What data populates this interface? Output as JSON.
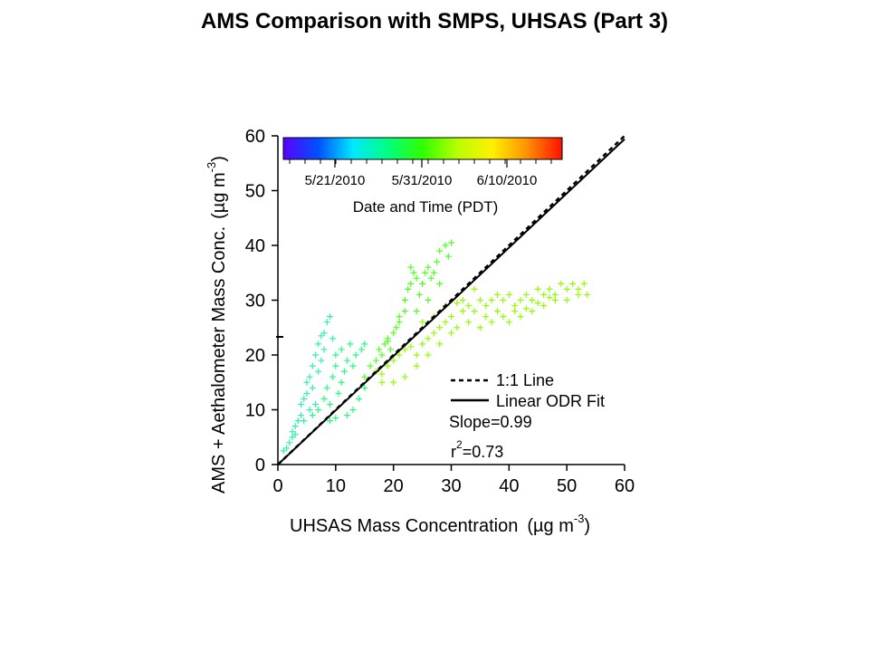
{
  "slide": {
    "title": "AMS Comparison with SMPS, UHSAS (Part 3)"
  },
  "chart_data": {
    "type": "scatter",
    "xlabel": "UHSAS Mass Concentration",
    "xlabel_units": "(µg m",
    "xlabel_units_exp": "-3",
    "xlabel_units_close": ")",
    "ylabel": "AMS + Aethalometer Mass Conc.",
    "ylabel_units": "(µg m",
    "ylabel_units_exp": "-3",
    "ylabel_units_close": ")",
    "xlim": [
      0,
      60
    ],
    "ylim": [
      0,
      60
    ],
    "xticks": [
      0,
      10,
      20,
      30,
      40,
      50,
      60
    ],
    "yticks": [
      0,
      10,
      20,
      30,
      40,
      50,
      60
    ],
    "grid": false,
    "colorbar": {
      "label": "Date and Time (PDT)",
      "ticks": [
        "5/21/2010",
        "5/31/2010",
        "6/10/2010"
      ],
      "colormap": [
        "#5a00ff",
        "#0050ff",
        "#00e8ff",
        "#00ff80",
        "#30ff00",
        "#b8ff00",
        "#fff000",
        "#ff9000",
        "#ff1000"
      ]
    },
    "legend": {
      "position": "bottom-right",
      "entries": [
        {
          "label": "1:1 Line",
          "style": "dashed"
        },
        {
          "label": "Linear ODR Fit",
          "style": "solid"
        }
      ]
    },
    "annotations": {
      "slope": "Slope=0.99",
      "r2_prefix": "r",
      "r2_exp": "2",
      "r2_value": "=0.73"
    },
    "reference_line": {
      "slope": 1,
      "intercept": 0
    },
    "fit_line": {
      "slope": 0.99,
      "intercept": 0
    },
    "series": [
      {
        "color": "#30f0b0",
        "points": [
          [
            1,
            2.5
          ],
          [
            1.5,
            3
          ],
          [
            2,
            4
          ],
          [
            2.5,
            5
          ],
          [
            2.5,
            6
          ],
          [
            3,
            7
          ],
          [
            3,
            5.5
          ],
          [
            3.5,
            8
          ],
          [
            4,
            9
          ],
          [
            4,
            11
          ],
          [
            4.5,
            12
          ],
          [
            5,
            13
          ],
          [
            5,
            15
          ],
          [
            5.5,
            16
          ],
          [
            6,
            14
          ],
          [
            6,
            18
          ],
          [
            6.5,
            20
          ],
          [
            7,
            17
          ],
          [
            7,
            22
          ],
          [
            7.5,
            19
          ],
          [
            8,
            24
          ],
          [
            8,
            21
          ],
          [
            8.5,
            26
          ],
          [
            9,
            27
          ],
          [
            9.5,
            23
          ],
          [
            7.5,
            23.5
          ],
          [
            6.5,
            11
          ],
          [
            5.5,
            10
          ],
          [
            4.5,
            8
          ]
        ]
      },
      {
        "color": "#20ff80",
        "points": [
          [
            6,
            9
          ],
          [
            7,
            10
          ],
          [
            8,
            12
          ],
          [
            8.5,
            14
          ],
          [
            9,
            11
          ],
          [
            9.5,
            16
          ],
          [
            10,
            18
          ],
          [
            10,
            20
          ],
          [
            10.5,
            13
          ],
          [
            11,
            15
          ],
          [
            11,
            21
          ],
          [
            11.5,
            17
          ],
          [
            12,
            19
          ],
          [
            12,
            9
          ],
          [
            12.5,
            22
          ],
          [
            13,
            18
          ],
          [
            13,
            10
          ],
          [
            13.5,
            20
          ],
          [
            14,
            12
          ],
          [
            14.5,
            21
          ],
          [
            15,
            14
          ],
          [
            15,
            22
          ],
          [
            9,
            8
          ],
          [
            10,
            8.5
          ]
        ]
      },
      {
        "color": "#50ff20",
        "points": [
          [
            15,
            16
          ],
          [
            16,
            18
          ],
          [
            17,
            19
          ],
          [
            17.5,
            21
          ],
          [
            18,
            20
          ],
          [
            18.5,
            22
          ],
          [
            19,
            23
          ],
          [
            19.5,
            21
          ],
          [
            20,
            24
          ],
          [
            20.5,
            25
          ],
          [
            21,
            27
          ],
          [
            22,
            28
          ],
          [
            22,
            30
          ],
          [
            22.5,
            32
          ],
          [
            23,
            33
          ],
          [
            23.5,
            35
          ],
          [
            24,
            34
          ],
          [
            24.5,
            31
          ],
          [
            25,
            33
          ],
          [
            25.5,
            35
          ],
          [
            26,
            36
          ],
          [
            26.5,
            34
          ],
          [
            27,
            35
          ],
          [
            27.5,
            37
          ],
          [
            28,
            39
          ],
          [
            29,
            40
          ],
          [
            29.5,
            38
          ],
          [
            30,
            40.5
          ],
          [
            23,
            36
          ],
          [
            26,
            30
          ],
          [
            28,
            33
          ],
          [
            24,
            28
          ],
          [
            21,
            26
          ],
          [
            19,
            22.5
          ]
        ]
      },
      {
        "color": "#90ff00",
        "points": [
          [
            17,
            17
          ],
          [
            18,
            16.5
          ],
          [
            19,
            18
          ],
          [
            20,
            19
          ],
          [
            21,
            20
          ],
          [
            22,
            21
          ],
          [
            23,
            21.5
          ],
          [
            24,
            20
          ],
          [
            25,
            22
          ],
          [
            26,
            23
          ],
          [
            27,
            24
          ],
          [
            28,
            25
          ],
          [
            29,
            26
          ],
          [
            30,
            27
          ],
          [
            31,
            25
          ],
          [
            32,
            28
          ],
          [
            33,
            29
          ],
          [
            34,
            28
          ],
          [
            35,
            30
          ],
          [
            36,
            29
          ],
          [
            37,
            30
          ],
          [
            38,
            31
          ],
          [
            39,
            30
          ],
          [
            40,
            31
          ],
          [
            41,
            29
          ],
          [
            42,
            30
          ],
          [
            43,
            31
          ],
          [
            44,
            30
          ],
          [
            45,
            32
          ],
          [
            46,
            31
          ],
          [
            47,
            32
          ],
          [
            48,
            31
          ],
          [
            49,
            33
          ],
          [
            50,
            32
          ],
          [
            51,
            33
          ],
          [
            52,
            32
          ],
          [
            53,
            33
          ],
          [
            53.5,
            31
          ],
          [
            32,
            30
          ],
          [
            34,
            32
          ],
          [
            36,
            27
          ],
          [
            38,
            28
          ],
          [
            40,
            26
          ],
          [
            42,
            27
          ],
          [
            44,
            28
          ],
          [
            46,
            29
          ],
          [
            48,
            30
          ],
          [
            50,
            30
          ],
          [
            52,
            31
          ],
          [
            30,
            24
          ],
          [
            28,
            22
          ],
          [
            26,
            20
          ],
          [
            24,
            18
          ],
          [
            22,
            16
          ],
          [
            20,
            15
          ],
          [
            18,
            15
          ],
          [
            27,
            27
          ],
          [
            29,
            29
          ],
          [
            31,
            29.5
          ],
          [
            25,
            26
          ],
          [
            33,
            26
          ],
          [
            35,
            25
          ],
          [
            37,
            26
          ],
          [
            39,
            27
          ],
          [
            41,
            28
          ],
          [
            43,
            28.5
          ],
          [
            45,
            29.5
          ],
          [
            47,
            30.5
          ]
        ]
      }
    ]
  }
}
